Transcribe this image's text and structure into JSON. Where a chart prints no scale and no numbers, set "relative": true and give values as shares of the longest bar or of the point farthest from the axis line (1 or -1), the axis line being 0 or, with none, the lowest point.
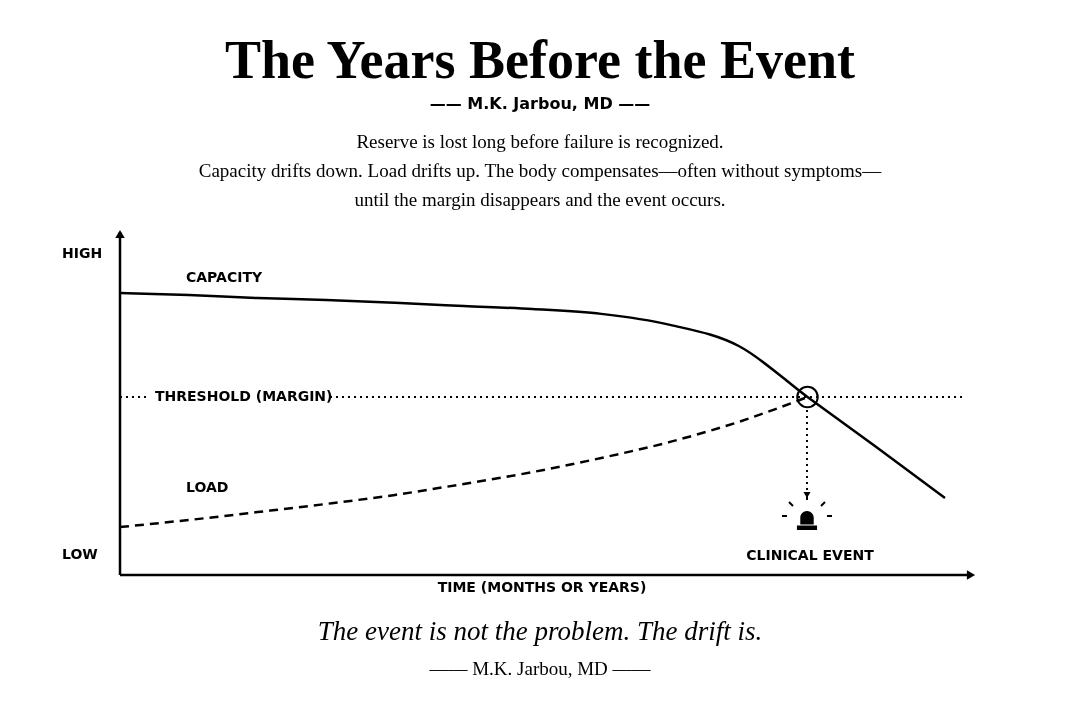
{
  "chart_data": {
    "type": "line",
    "title": "The Years Before the Event",
    "subtitle": "—— M.K. Jarbou, MD ——",
    "xlabel": "TIME (MONTHS OR YEARS)",
    "relative": true,
    "categories": [
      null,
      null,
      null,
      null,
      null,
      null,
      null,
      null,
      null,
      null,
      null,
      null,
      null
    ],
    "series": [
      {
        "name": "CAPACITY",
        "color": "#000000",
        "line_style": "solid",
        "values": [
          1.0,
          0.993,
          0.982,
          0.975,
          0.965,
          0.954,
          0.943,
          0.926,
          0.887,
          0.812,
          0.631,
          0.454,
          0.273
        ]
      },
      {
        "name": "LOAD",
        "color": "#000000",
        "line_style": "dashed",
        "values": [
          0.17,
          0.195,
          0.223,
          0.252,
          0.284,
          0.323,
          0.365,
          0.415,
          0.472,
          0.543,
          0.631,
          null,
          null
        ]
      }
    ],
    "ref_lines": [
      {
        "axis": "y",
        "value": 0.631,
        "label": "THRESHOLD (MARGIN)",
        "line_style": "dotted",
        "color": "#000000"
      }
    ],
    "annotations": [
      "Reserve is lost long before failure is recognized.",
      "Capacity drifts down. Load drifts up. The body compensates—often without symptoms—",
      "until the margin disappears and the event occurs.",
      "HIGH",
      "LOW",
      "CLINICAL EVENT",
      "The event is not the problem. The drift is.",
      "—— M.K. Jarbou, MD ——"
    ]
  }
}
